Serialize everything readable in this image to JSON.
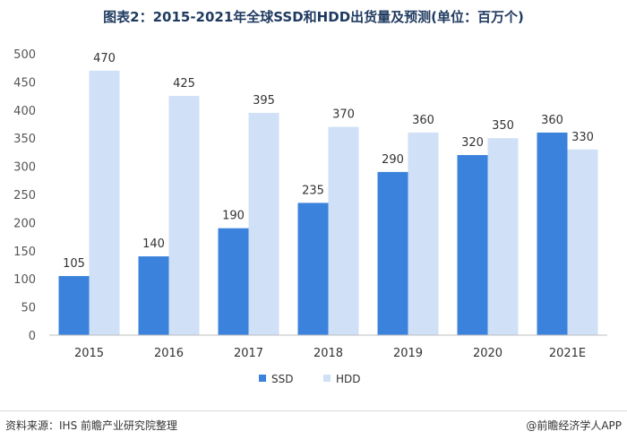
{
  "title": "图表2：2015-2021年全球SSD和HDD出货量及预测(单位：百万个)",
  "chart_data": {
    "type": "bar",
    "title": "图表2：2015-2021年全球SSD和HDD出货量及预测(单位：百万个)",
    "categories": [
      "2015",
      "2016",
      "2017",
      "2018",
      "2019",
      "2020",
      "2021E"
    ],
    "series": [
      {
        "name": "SSD",
        "color": "#3b82dc",
        "values": [
          105,
          140,
          190,
          235,
          290,
          320,
          360
        ]
      },
      {
        "name": "HDD",
        "color": "#cfe0f7",
        "values": [
          470,
          425,
          395,
          370,
          360,
          350,
          330
        ]
      }
    ],
    "yticks": [
      0,
      50,
      100,
      150,
      200,
      250,
      300,
      350,
      400,
      450,
      500
    ],
    "ylim": [
      0,
      500
    ],
    "grid": false,
    "legend_position": "bottom-center",
    "xlabel": "",
    "ylabel": ""
  },
  "footer": {
    "source": "资料来源：IHS 前瞻产业研究院整理",
    "brand": "@前瞻经济学人APP"
  }
}
